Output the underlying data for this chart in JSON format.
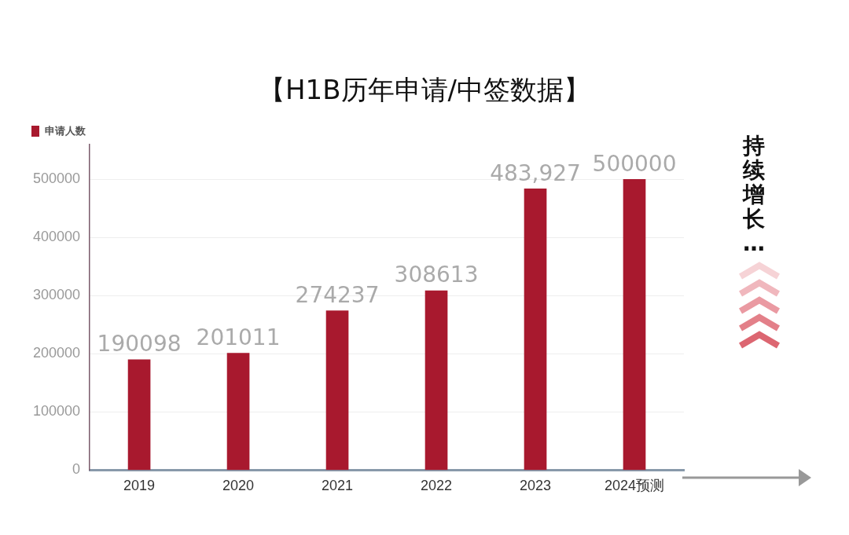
{
  "chart_data": {
    "type": "bar",
    "title": "【H1B历年申请/中签数据】",
    "categories": [
      "2019",
      "2020",
      "2021",
      "2022",
      "2023",
      "2024预测"
    ],
    "series": [
      {
        "name": "申请人数",
        "color": "#a8192e",
        "values": [
          190098,
          201011,
          274237,
          308613,
          483927,
          500000
        ],
        "value_labels": [
          "190098",
          "201011",
          "274237",
          "308613",
          "483,927",
          "500000"
        ]
      }
    ],
    "ylim": [
      0,
      560000
    ],
    "yticks": [
      0,
      100000,
      200000,
      300000,
      400000,
      500000
    ],
    "grid": "y",
    "legend": "top left",
    "annotations": [
      "持续增长…"
    ]
  }
}
